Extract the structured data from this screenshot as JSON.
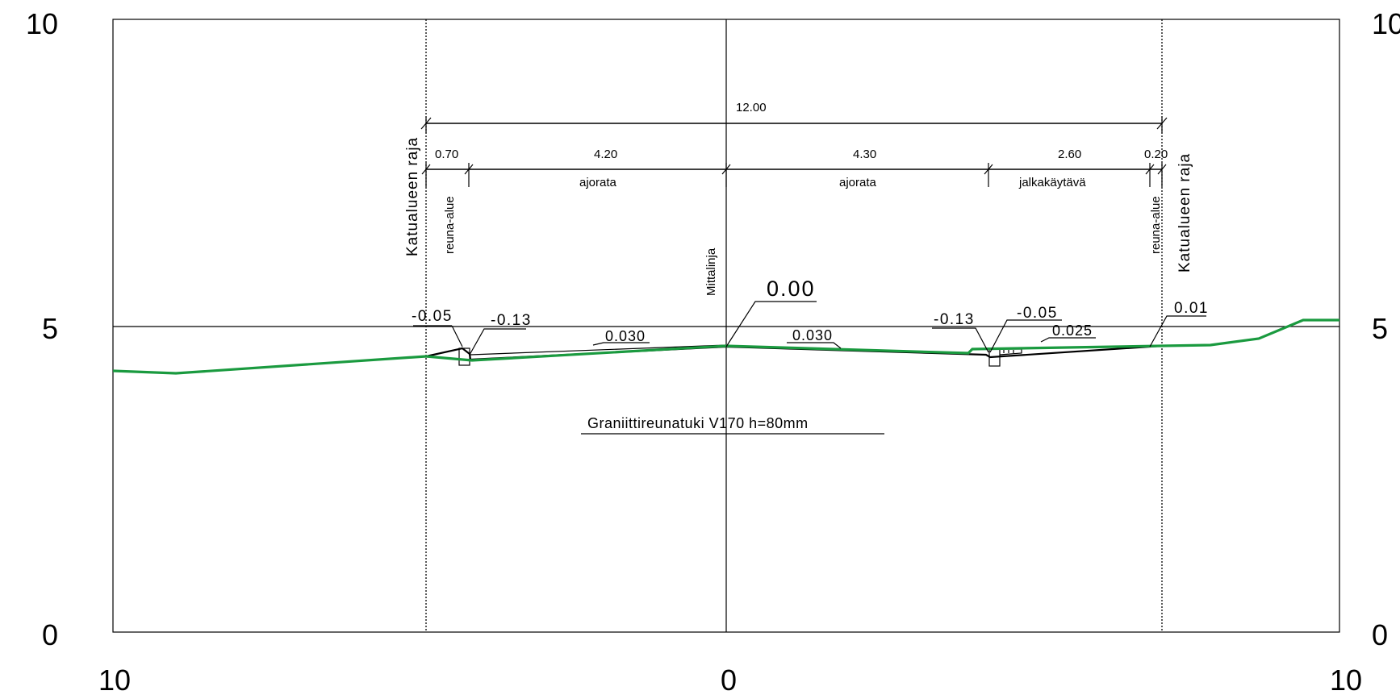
{
  "axis": {
    "y_left_top": "10",
    "y_left_mid": "5",
    "y_left_bottom": "0",
    "y_right_top": "10",
    "y_right_mid": "5",
    "y_right_bottom": "0",
    "x_left": "10",
    "x_center": "0",
    "x_right": "10"
  },
  "dimensions": {
    "total": "12.00",
    "segments": [
      "0.70",
      "4.20",
      "4.30",
      "2.60",
      "0.20"
    ]
  },
  "zones": {
    "left_edge": "reuna-alue",
    "left_road": "ajorata",
    "right_road": "ajorata",
    "sidewalk": "jalkakäytävä",
    "right_edge": "reuna-alue"
  },
  "labels": {
    "left_boundary": "Katualueen raja",
    "right_boundary": "Katualueen raja",
    "centerline": "Mittalinja",
    "curb_note": "Graniittireunatuki V170 h=80mm"
  },
  "elevations": {
    "center": "0.00",
    "left_outer": "-0.05",
    "left_inner": "-0.13",
    "right_inner": "-0.13",
    "right_outer": "-0.05",
    "right_edge": "0.01"
  },
  "slopes": {
    "left_road": "0.030",
    "right_road": "0.030",
    "sidewalk": "0.025"
  },
  "colors": {
    "ground_line": "#1a9a3f",
    "road_line": "#000000",
    "frame": "#000000"
  }
}
